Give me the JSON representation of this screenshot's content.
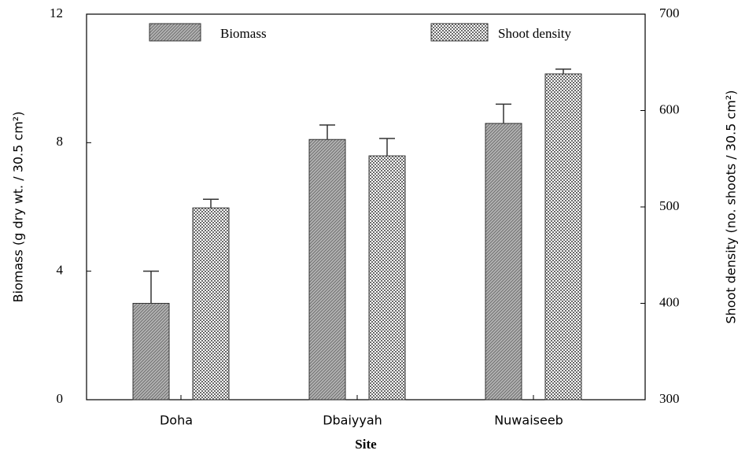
{
  "chart_data": {
    "type": "bar",
    "x_label": "Site",
    "y_label": "Biomass (g dry wt. / 30.5 cm²)",
    "y2_label": "Shoot density (no. shoots / 30.5 cm²)",
    "categories": [
      "Doha",
      "Dbaiyyah",
      "Nuwaiseeb"
    ],
    "series": [
      {
        "name": "Biomass",
        "color": "#9a9a9a",
        "pattern": "diagonal",
        "values": [
          3.0,
          8.1,
          8.6
        ],
        "errors": [
          1.0,
          0.45,
          0.6
        ]
      },
      {
        "name": "Shoot density",
        "color": "#b0b0b0",
        "pattern": "crosshatch",
        "axis": "y2",
        "values": [
          499,
          553,
          638
        ],
        "errors": [
          9,
          18,
          5
        ]
      }
    ],
    "ylim": [
      0,
      12
    ],
    "yticks": [
      0,
      4,
      8,
      12
    ],
    "y2lim": [
      300,
      700
    ],
    "y2ticks": [
      300,
      400,
      500,
      600,
      700
    ],
    "legend": "top"
  }
}
